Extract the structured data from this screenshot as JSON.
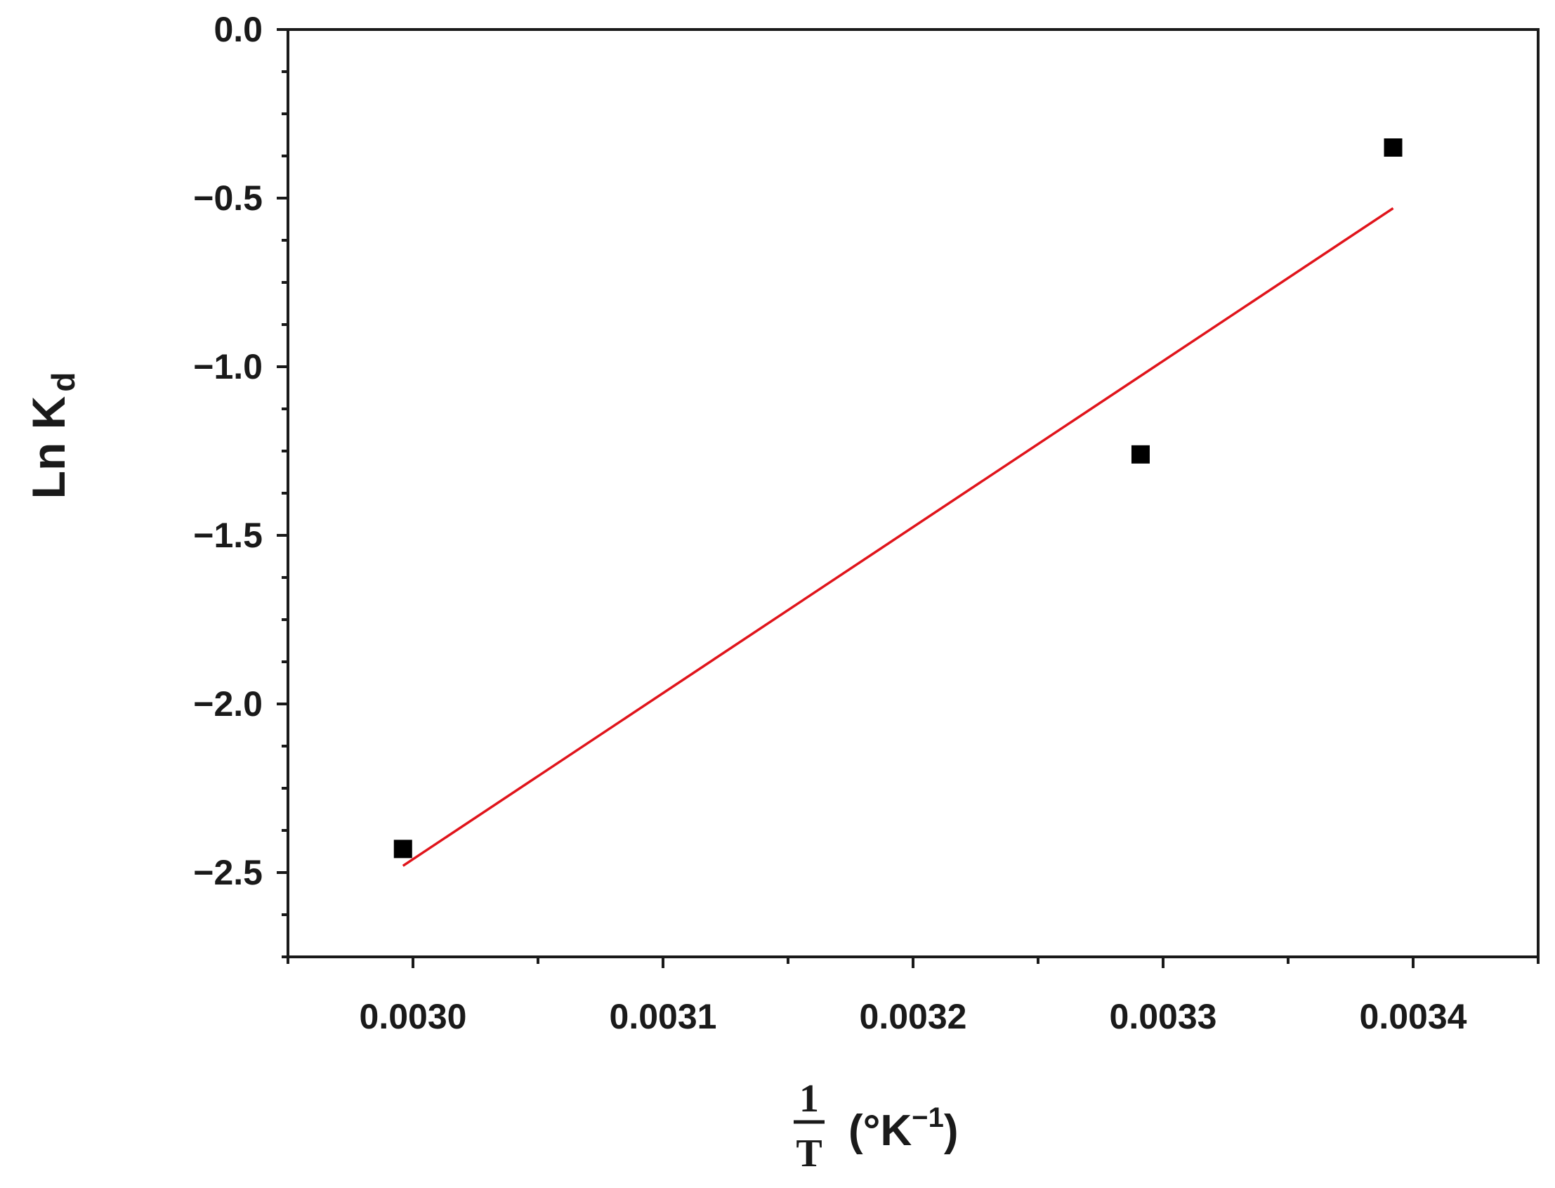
{
  "chart_data": {
    "type": "scatter",
    "title": "",
    "xlabel": {
      "numerator": "1",
      "denominator": "T",
      "unit": "(°K",
      "unit_superscript": "−1",
      "unit_close": ")"
    },
    "ylabel": {
      "main": "Ln K",
      "subscript": "d"
    },
    "xlim": [
      0.00295,
      0.00345
    ],
    "ylim": [
      -2.75,
      0.0
    ],
    "x_ticks": [
      0.003,
      0.0031,
      0.0032,
      0.0033,
      0.0034
    ],
    "x_tick_labels": [
      "0.0030",
      "0.0031",
      "0.0032",
      "0.0033",
      "0.0034"
    ],
    "y_ticks": [
      0.0,
      -0.5,
      -1.0,
      -1.5,
      -2.0,
      -2.5
    ],
    "y_tick_labels": [
      "0.0",
      "−0.5",
      "−1.0",
      "−1.5",
      "−2.0",
      "−2.5"
    ],
    "grid": false,
    "points": [
      {
        "x": 0.002996,
        "y": -2.43
      },
      {
        "x": 0.003291,
        "y": -1.26
      },
      {
        "x": 0.003392,
        "y": -0.35
      }
    ],
    "fit_line": {
      "color": "#e0141b",
      "x": [
        0.002996,
        0.003392
      ],
      "y": [
        -2.48,
        -0.53
      ]
    },
    "marker_color": "#000000",
    "axis_color": "#1a1a1a"
  }
}
